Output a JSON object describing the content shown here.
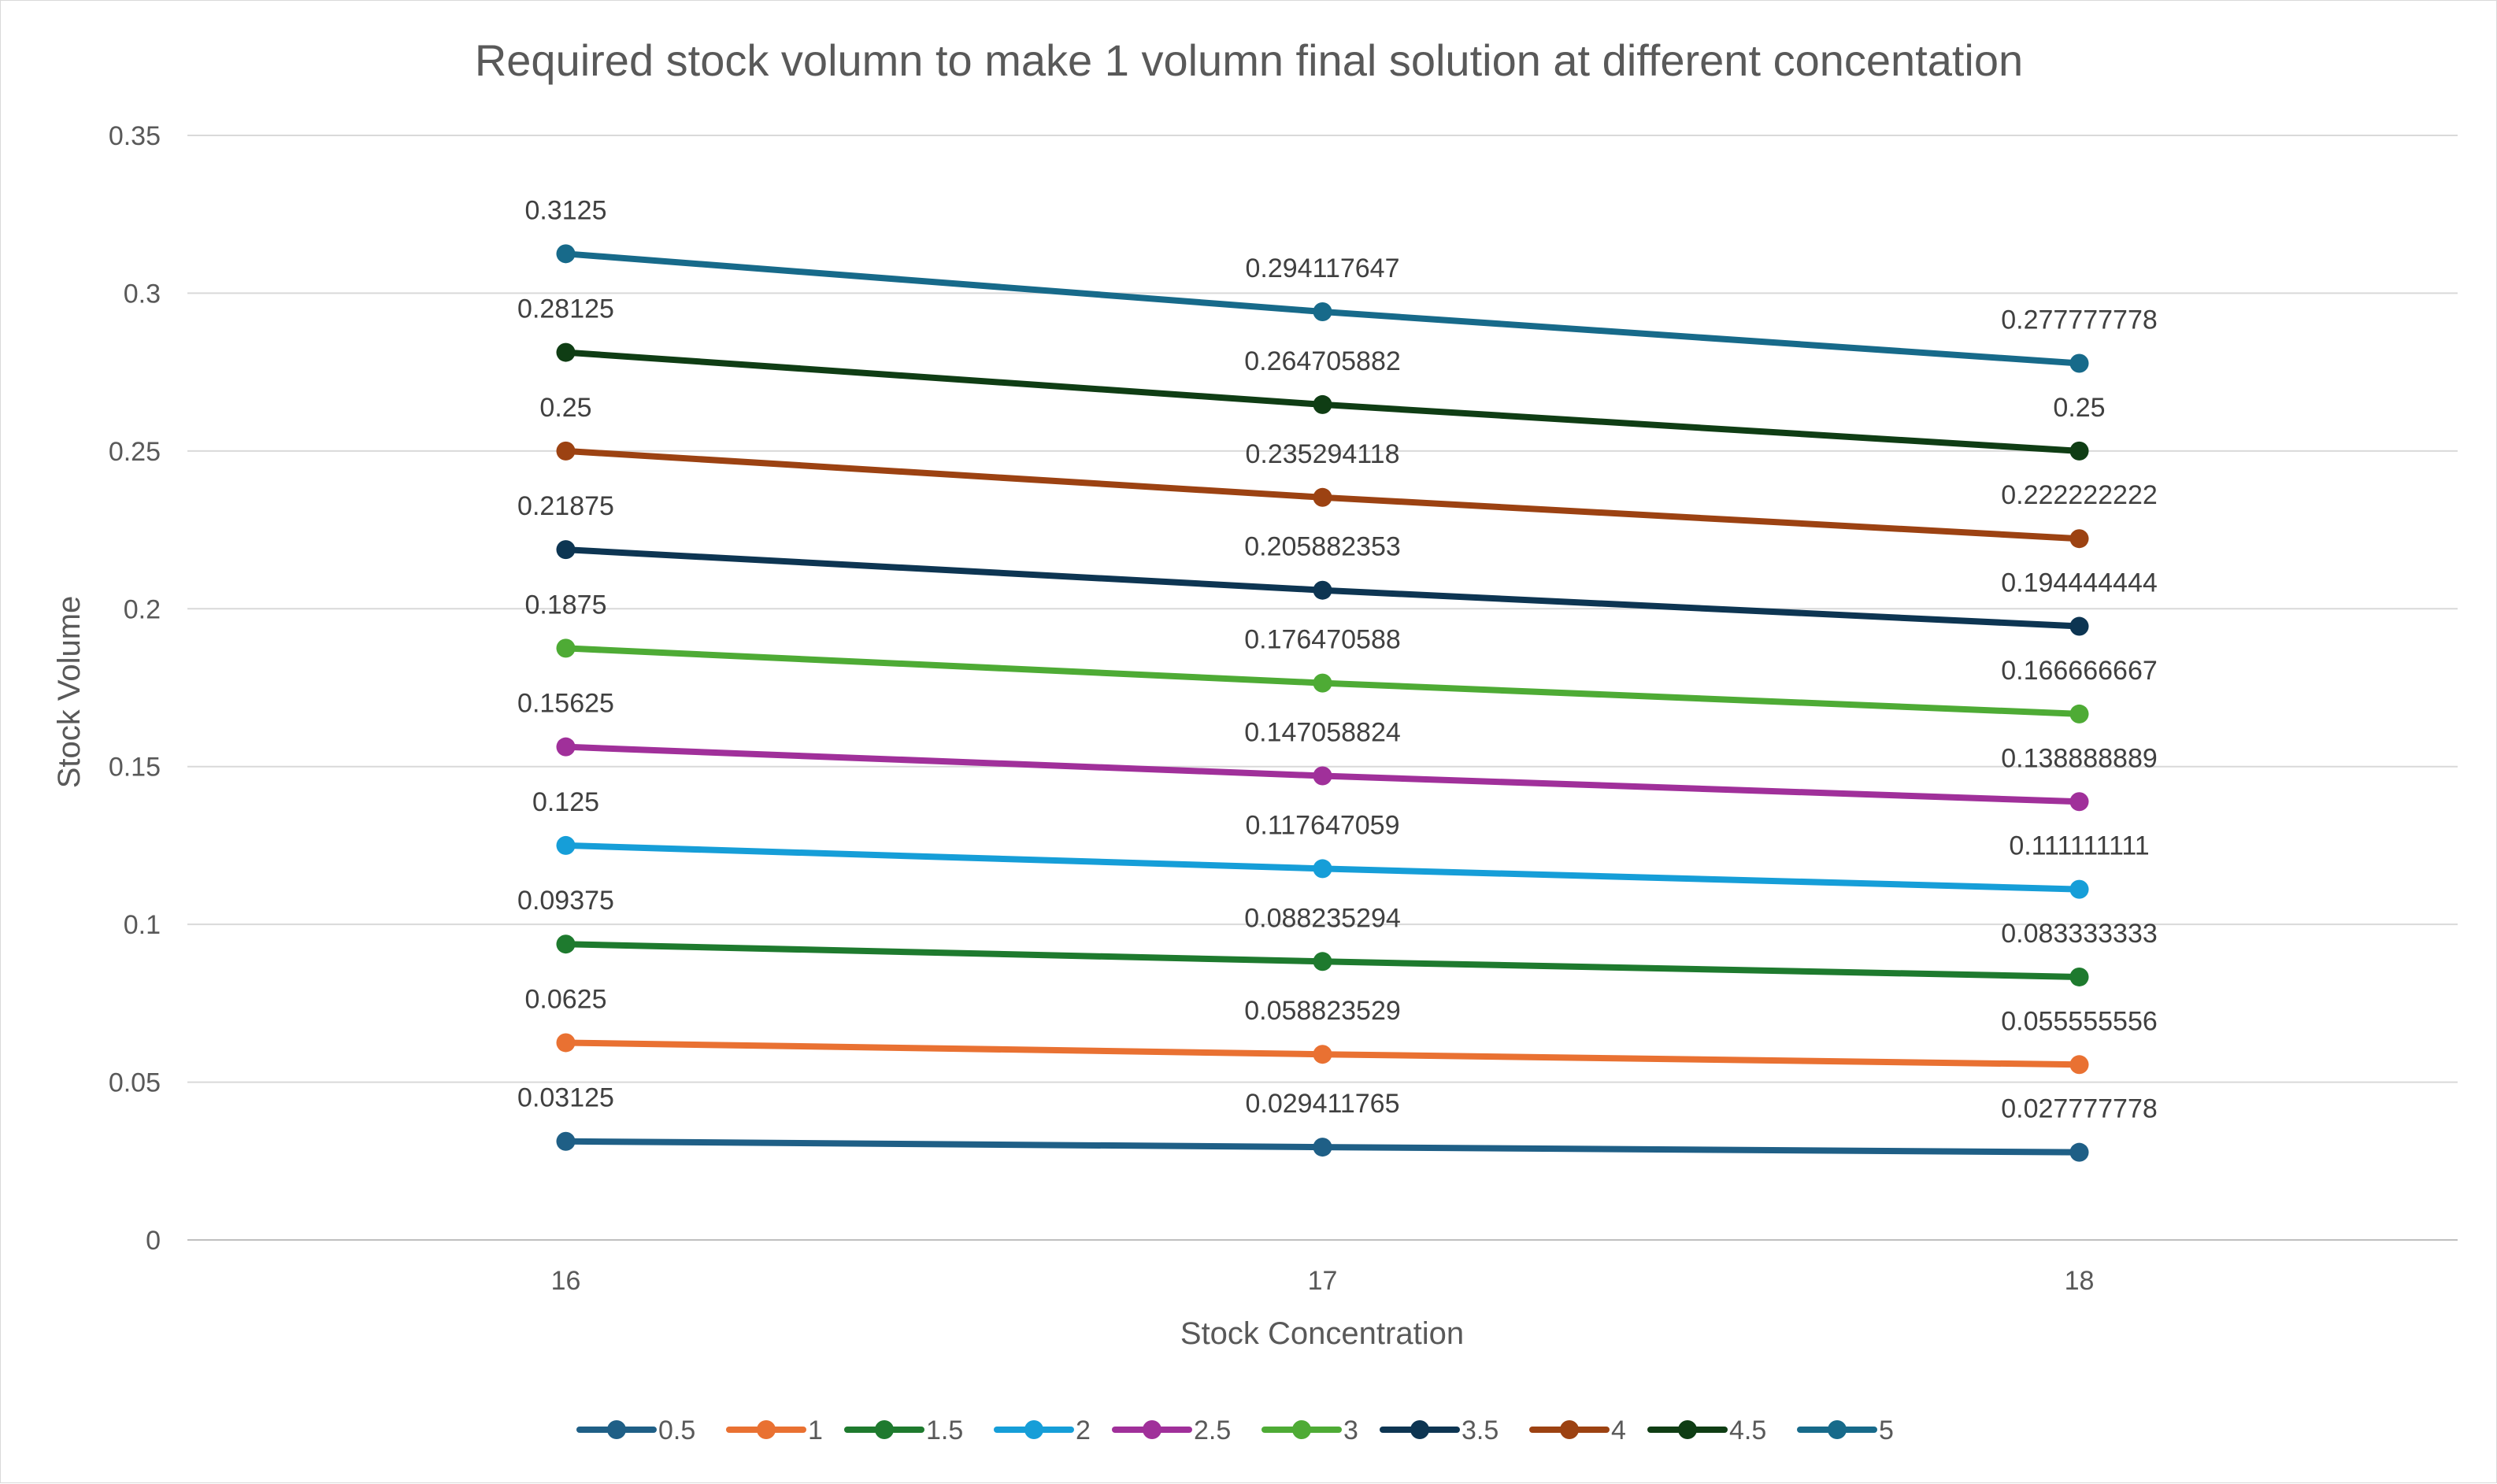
{
  "chart_data": {
    "type": "line",
    "title": "Required stock volumn to make 1 volumn final solution at different concentation",
    "xlabel": "Stock Concentration",
    "ylabel": "Stock Volume",
    "categories": [
      "16",
      "17",
      "18"
    ],
    "ylim": [
      0,
      0.35
    ],
    "yticks": [
      "0",
      "0.05",
      "0.1",
      "0.15",
      "0.2",
      "0.25",
      "0.3",
      "0.35"
    ],
    "grid": true,
    "legend_position": "bottom",
    "series": [
      {
        "name": "0.5",
        "color": "#1f5f86",
        "values": [
          0.03125,
          0.029411765,
          0.027777778
        ],
        "labels": [
          "0.03125",
          "0.029411765",
          "0.027777778"
        ]
      },
      {
        "name": "1",
        "color": "#e97132",
        "values": [
          0.0625,
          0.058823529,
          0.055555556
        ],
        "labels": [
          "0.0625",
          "0.058823529",
          "0.055555556"
        ]
      },
      {
        "name": "1.5",
        "color": "#1e7a2e",
        "values": [
          0.09375,
          0.088235294,
          0.083333333
        ],
        "labels": [
          "0.09375",
          "0.088235294",
          "0.083333333"
        ]
      },
      {
        "name": "2",
        "color": "#169ed8",
        "values": [
          0.125,
          0.117647059,
          0.111111111
        ],
        "labels": [
          "0.125",
          "0.117647059",
          "0.111111111"
        ]
      },
      {
        "name": "2.5",
        "color": "#a0309a",
        "values": [
          0.15625,
          0.147058824,
          0.138888889
        ],
        "labels": [
          "0.15625",
          "0.147058824",
          "0.138888889"
        ]
      },
      {
        "name": "3",
        "color": "#4eab35",
        "values": [
          0.1875,
          0.176470588,
          0.166666667
        ],
        "labels": [
          "0.1875",
          "0.176470588",
          "0.166666667"
        ]
      },
      {
        "name": "3.5",
        "color": "#0d3552",
        "values": [
          0.21875,
          0.205882353,
          0.194444444
        ],
        "labels": [
          "0.21875",
          "0.205882353",
          "0.194444444"
        ]
      },
      {
        "name": "4",
        "color": "#9c4212",
        "values": [
          0.25,
          0.235294118,
          0.222222222
        ],
        "labels": [
          "0.25",
          "0.235294118",
          "0.222222222"
        ]
      },
      {
        "name": "4.5",
        "color": "#0f3d14",
        "values": [
          0.28125,
          0.264705882,
          0.25
        ],
        "labels": [
          "0.28125",
          "0.264705882",
          "0.25"
        ]
      },
      {
        "name": "5",
        "color": "#176a8a",
        "values": [
          0.3125,
          0.294117647,
          0.277777778
        ],
        "labels": [
          "0.3125",
          "0.294117647",
          "0.277777778"
        ]
      }
    ]
  }
}
